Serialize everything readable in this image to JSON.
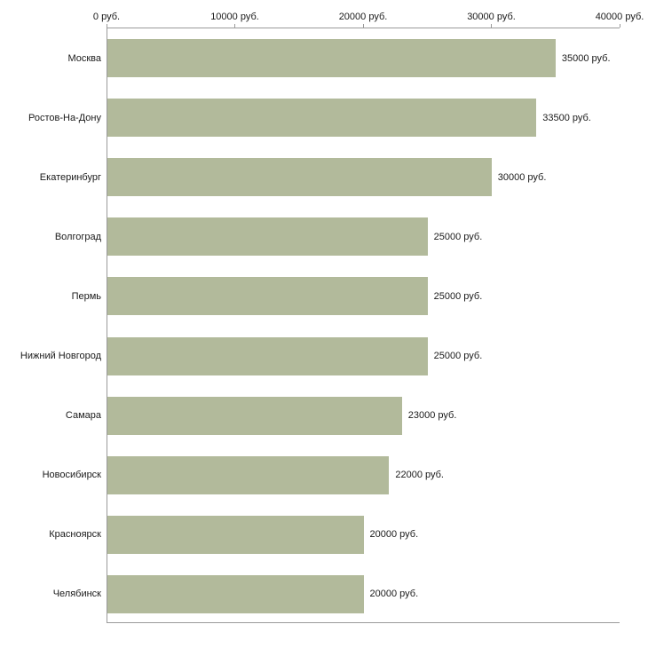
{
  "chart_data": {
    "type": "bar",
    "orientation": "horizontal",
    "title": "",
    "xlabel": "",
    "ylabel": "",
    "categories": [
      "Москва",
      "Ростов-На-Дону",
      "Екатеринбург",
      "Волгоград",
      "Пермь",
      "Нижний Новгород",
      "Самара",
      "Новосибирск",
      "Красноярск",
      "Челябинск"
    ],
    "values": [
      35000,
      33500,
      30000,
      25000,
      25000,
      25000,
      23000,
      22000,
      20000,
      20000
    ],
    "value_labels": [
      "35000 руб.",
      "33500 руб.",
      "30000 руб.",
      "25000 руб.",
      "25000 руб.",
      "23000 руб.",
      "22000 руб.",
      "20000 руб.",
      "20000 руб."
    ],
    "value_labels_full": [
      "35000 руб.",
      "33500 руб.",
      "30000 руб.",
      "25000 руб.",
      "25000 руб.",
      "25000 руб.",
      "23000 руб.",
      "22000 руб.",
      "20000 руб.",
      "20000 руб."
    ],
    "x_ticks": [
      "0 руб.",
      "10000 руб.",
      "20000 руб.",
      "30000 руб.",
      "40000 руб."
    ],
    "x_tick_values": [
      0,
      10000,
      20000,
      30000,
      40000
    ],
    "xlim": [
      0,
      40000
    ],
    "grid": false,
    "legend": null,
    "bar_color": "#b2ba9b",
    "axis_color": "#9a9a9a",
    "text_color": "#1a1a1a"
  }
}
